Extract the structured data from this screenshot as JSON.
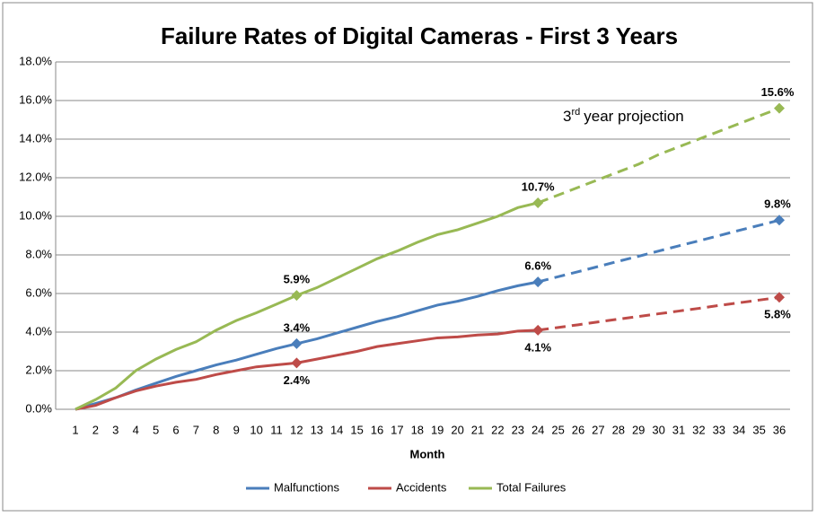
{
  "chart_data": {
    "type": "line",
    "title": "Failure Rates of Digital Cameras - First 3 Years",
    "x_label": "Month",
    "annotation": {
      "number": "3",
      "superscript": "rd",
      "text": "year projection"
    },
    "projection_from": "24",
    "categories": [
      "1",
      "2",
      "3",
      "4",
      "5",
      "6",
      "7",
      "8",
      "9",
      "10",
      "11",
      "12",
      "13",
      "14",
      "15",
      "16",
      "17",
      "18",
      "19",
      "20",
      "21",
      "22",
      "23",
      "24",
      "25",
      "26",
      "27",
      "28",
      "29",
      "30",
      "31",
      "32",
      "33",
      "34",
      "35",
      "36"
    ],
    "series": [
      {
        "name": "Malfunctions",
        "color": "#4a7ebb",
        "label_position": "above",
        "values": [
          0,
          0.3,
          0.6,
          1.0,
          1.35,
          1.7,
          2.0,
          2.3,
          2.55,
          2.85,
          3.15,
          3.4,
          3.65,
          3.95,
          4.25,
          4.55,
          4.8,
          5.1,
          5.4,
          5.6,
          5.85,
          6.15,
          6.4,
          6.6,
          6.87,
          7.13,
          7.4,
          7.67,
          7.93,
          8.2,
          8.47,
          8.73,
          9.0,
          9.27,
          9.53,
          9.8
        ],
        "value_labels": [
          null,
          null,
          null,
          null,
          null,
          null,
          null,
          null,
          null,
          null,
          null,
          "3.4%",
          null,
          null,
          null,
          null,
          null,
          null,
          null,
          null,
          null,
          null,
          null,
          "6.6%",
          null,
          null,
          null,
          null,
          null,
          null,
          null,
          null,
          null,
          null,
          null,
          "9.8%"
        ]
      },
      {
        "name": "Accidents",
        "color": "#be4b48",
        "label_position": "below",
        "values": [
          0,
          0.2,
          0.6,
          0.95,
          1.2,
          1.4,
          1.55,
          1.8,
          2.0,
          2.2,
          2.3,
          2.4,
          2.6,
          2.8,
          3.0,
          3.25,
          3.4,
          3.55,
          3.7,
          3.75,
          3.85,
          3.9,
          4.05,
          4.1,
          4.24,
          4.38,
          4.53,
          4.67,
          4.81,
          4.95,
          5.09,
          5.23,
          5.38,
          5.52,
          5.66,
          5.8
        ],
        "value_labels": [
          null,
          null,
          null,
          null,
          null,
          null,
          null,
          null,
          null,
          null,
          null,
          "2.4%",
          null,
          null,
          null,
          null,
          null,
          null,
          null,
          null,
          null,
          null,
          null,
          "4.1%",
          null,
          null,
          null,
          null,
          null,
          null,
          null,
          null,
          null,
          null,
          null,
          "5.8%"
        ]
      },
      {
        "name": "Total Failures",
        "color": "#98b954",
        "label_position": "above",
        "values": [
          0,
          0.5,
          1.1,
          2.0,
          2.6,
          3.1,
          3.5,
          4.1,
          4.6,
          5.0,
          5.45,
          5.9,
          6.3,
          6.8,
          7.3,
          7.8,
          8.2,
          8.65,
          9.05,
          9.3,
          9.65,
          10.0,
          10.45,
          10.7,
          11.1,
          11.5,
          11.9,
          12.3,
          12.7,
          13.2,
          13.6,
          14.0,
          14.4,
          14.8,
          15.2,
          15.6
        ],
        "value_labels": [
          null,
          null,
          null,
          null,
          null,
          null,
          null,
          null,
          null,
          null,
          null,
          "5.9%",
          null,
          null,
          null,
          null,
          null,
          null,
          null,
          null,
          null,
          null,
          null,
          "10.7%",
          null,
          null,
          null,
          null,
          null,
          null,
          null,
          null,
          null,
          null,
          null,
          "15.6%"
        ]
      }
    ],
    "ylim": [
      0,
      18
    ],
    "yticks": [
      {
        "value": 0,
        "label": "0.0%"
      },
      {
        "value": 2,
        "label": "2.0%"
      },
      {
        "value": 4,
        "label": "4.0%"
      },
      {
        "value": 6,
        "label": "6.0%"
      },
      {
        "value": 8,
        "label": "8.0%"
      },
      {
        "value": 10,
        "label": "10.0%"
      },
      {
        "value": 12,
        "label": "12.0%"
      },
      {
        "value": 14,
        "label": "14.0%"
      },
      {
        "value": 16,
        "label": "16.0%"
      },
      {
        "value": 18,
        "label": "18.0%"
      }
    ],
    "grid": true,
    "legend": "bottom"
  }
}
